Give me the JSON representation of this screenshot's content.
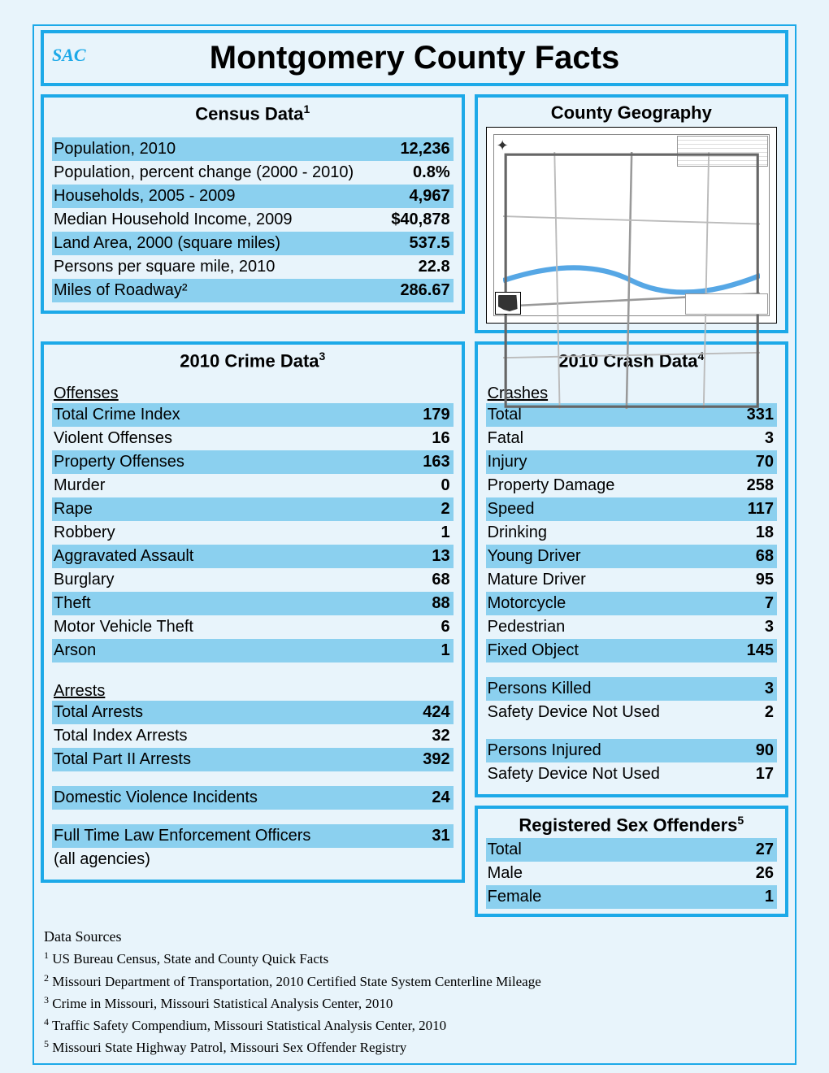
{
  "colors": {
    "border": "#1ca9e8",
    "highlight": "#8bd0ef",
    "background": "#e8f4fb"
  },
  "logo_text": "SAC",
  "title": "Montgomery County Facts",
  "census": {
    "title": "Census Data",
    "sup": "1",
    "rows": [
      {
        "label": "Population, 2010",
        "value": "12,236",
        "hl": true
      },
      {
        "label": "Population, percent change (2000 - 2010)",
        "value": "0.8%",
        "hl": false
      },
      {
        "label": "Households, 2005 - 2009",
        "value": "4,967",
        "hl": true
      },
      {
        "label": "Median Household Income, 2009",
        "value": "$40,878",
        "hl": false
      },
      {
        "label": "Land Area, 2000 (square miles)",
        "value": "537.5",
        "hl": true
      },
      {
        "label": "Persons per square mile, 2010",
        "value": "22.8",
        "hl": false
      },
      {
        "label": "Miles of Roadway²",
        "value": "286.67",
        "hl": true
      }
    ]
  },
  "geography": {
    "title": "County Geography"
  },
  "crime": {
    "title": "2010 Crime Data",
    "sup": "3",
    "offenses_head": "Offenses",
    "offenses": [
      {
        "label": "Total Crime Index",
        "value": "179",
        "hl": true
      },
      {
        "label": "Violent Offenses",
        "value": "16",
        "hl": false
      },
      {
        "label": "Property Offenses",
        "value": "163",
        "hl": true
      },
      {
        "label": "Murder",
        "value": "0",
        "hl": false
      },
      {
        "label": "Rape",
        "value": "2",
        "hl": true
      },
      {
        "label": "Robbery",
        "value": "1",
        "hl": false
      },
      {
        "label": "Aggravated Assault",
        "value": "13",
        "hl": true
      },
      {
        "label": "Burglary",
        "value": "68",
        "hl": false
      },
      {
        "label": "Theft",
        "value": "88",
        "hl": true
      },
      {
        "label": "Motor Vehicle Theft",
        "value": "6",
        "hl": false
      },
      {
        "label": "Arson",
        "value": "1",
        "hl": true
      }
    ],
    "arrests_head": "Arrests",
    "arrests": [
      {
        "label": "Total Arrests",
        "value": "424",
        "hl": true
      },
      {
        "label": "Total Index Arrests",
        "value": "32",
        "hl": false
      },
      {
        "label": "Total Part II Arrests",
        "value": "392",
        "hl": true
      }
    ],
    "dv": {
      "label": "Domestic Violence Incidents",
      "value": "24",
      "hl": true
    },
    "officers": {
      "label": "Full Time Law Enforcement Officers (all agencies)",
      "value": "31",
      "hl": true
    }
  },
  "crash": {
    "title": "2010 Crash Data",
    "sup": "4",
    "crashes_head": "Crashes",
    "crashes": [
      {
        "label": "Total",
        "value": "331",
        "hl": true
      },
      {
        "label": "Fatal",
        "value": "3",
        "hl": false
      },
      {
        "label": "Injury",
        "value": "70",
        "hl": true
      },
      {
        "label": "Property Damage",
        "value": "258",
        "hl": false
      },
      {
        "label": "Speed",
        "value": "117",
        "hl": true
      },
      {
        "label": "Drinking",
        "value": "18",
        "hl": false
      },
      {
        "label": "Young Driver",
        "value": "68",
        "hl": true
      },
      {
        "label": "Mature Driver",
        "value": "95",
        "hl": false
      },
      {
        "label": "Motorcycle",
        "value": "7",
        "hl": true
      },
      {
        "label": "Pedestrian",
        "value": "3",
        "hl": false
      },
      {
        "label": "Fixed Object",
        "value": "145",
        "hl": true
      }
    ],
    "killed": [
      {
        "label": "Persons Killed",
        "value": "3",
        "hl": true
      },
      {
        "label": "Safety Device Not Used",
        "value": "2",
        "hl": false
      }
    ],
    "injured": [
      {
        "label": "Persons Injured",
        "value": "90",
        "hl": true
      },
      {
        "label": "Safety Device Not Used",
        "value": "17",
        "hl": false
      }
    ]
  },
  "offenders": {
    "title": "Registered Sex Offenders",
    "sup": "5",
    "rows": [
      {
        "label": "Total",
        "value": "27",
        "hl": true
      },
      {
        "label": "Male",
        "value": "26",
        "hl": false
      },
      {
        "label": "Female",
        "value": "1",
        "hl": true
      }
    ]
  },
  "sources": {
    "title": "Data Sources",
    "items": [
      {
        "num": "1",
        "text": "US Bureau Census, State and County Quick Facts"
      },
      {
        "num": "2",
        "text": "Missouri Department of Transportation, 2010 Certified State System Centerline Mileage"
      },
      {
        "num": "3",
        "text": "Crime in Missouri, Missouri Statistical Analysis Center, 2010"
      },
      {
        "num": "4",
        "text": "Traffic Safety Compendium, Missouri Statistical Analysis Center, 2010"
      },
      {
        "num": "5",
        "text": "Missouri State Highway Patrol, Missouri Sex Offender Registry"
      }
    ]
  }
}
